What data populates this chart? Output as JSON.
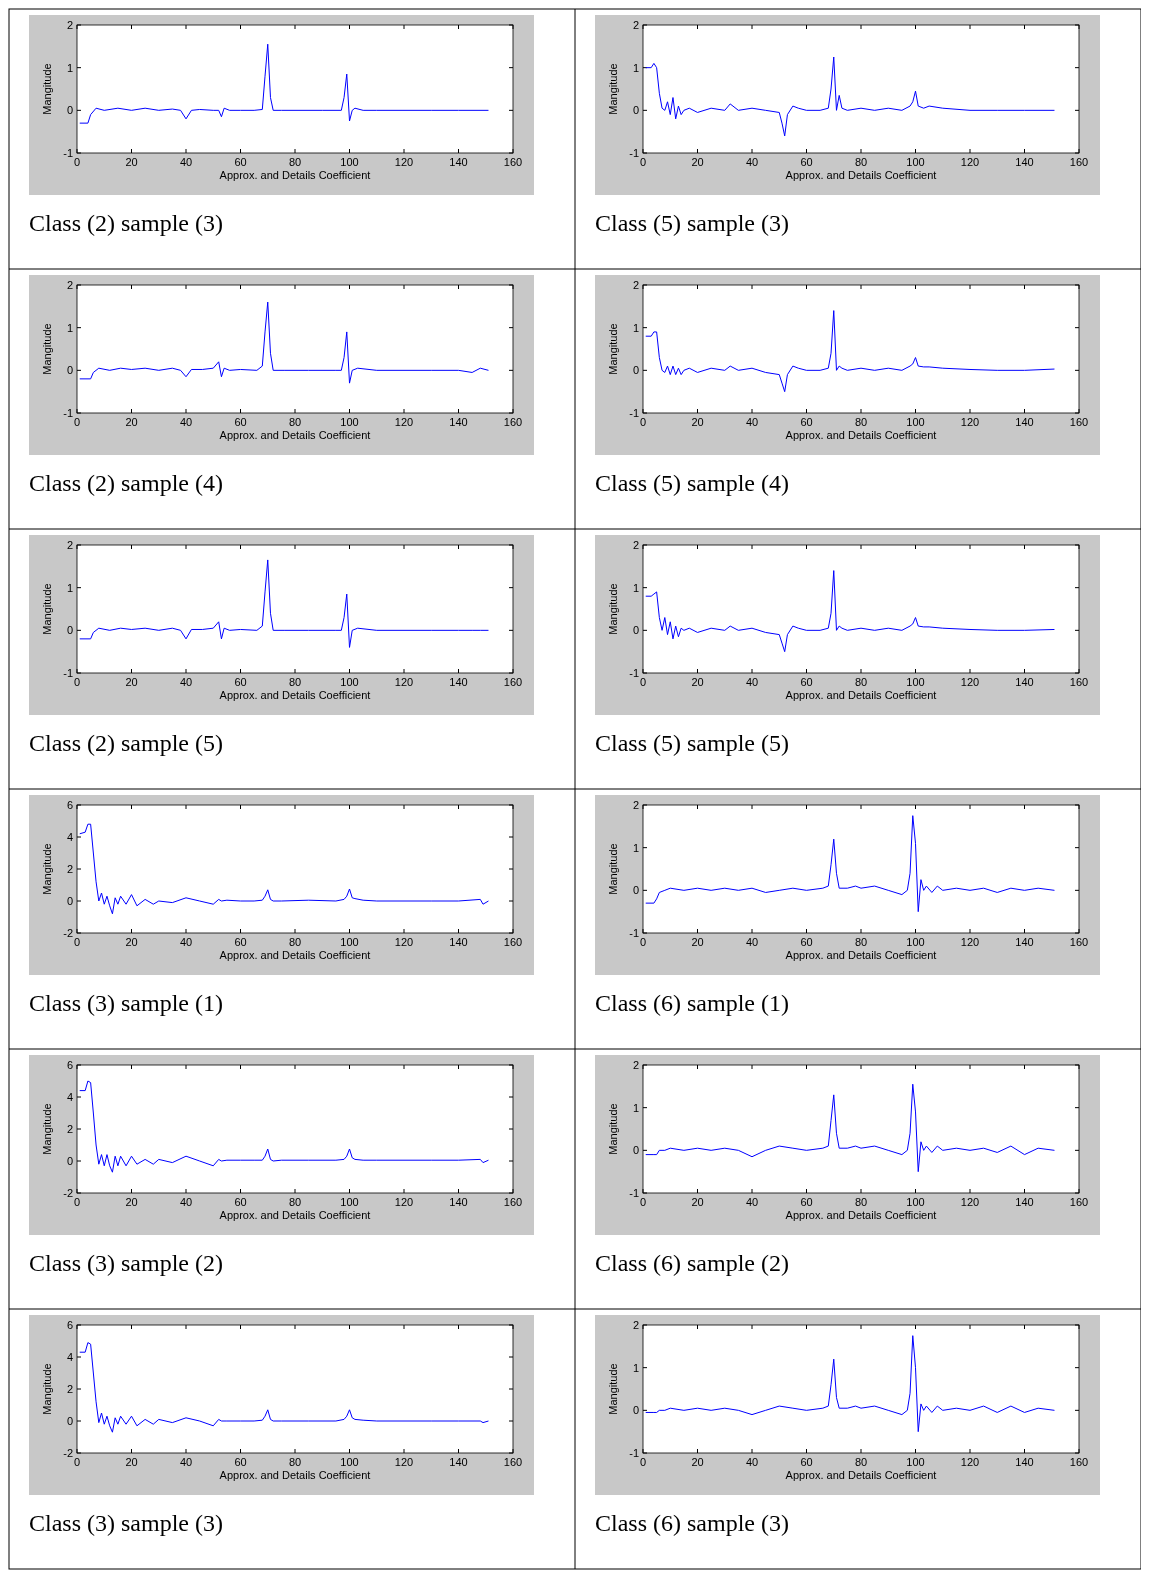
{
  "chart_data": [
    {
      "type": "line",
      "xlabel": "Approx. and Details Coefficient",
      "ylabel": "Mangitude",
      "annotations": [
        "Class (2) sample (3)"
      ],
      "xlim": [
        0,
        160
      ],
      "xticks": [
        0,
        20,
        40,
        60,
        80,
        100,
        120,
        140,
        160
      ],
      "ylim": [
        -1,
        2
      ],
      "yticks": [
        -1,
        0,
        1,
        2
      ],
      "x": [
        1,
        4,
        5,
        7,
        10,
        15,
        20,
        25,
        30,
        35,
        38,
        40,
        42,
        45,
        50,
        52,
        53,
        54,
        56,
        60,
        65,
        68,
        69,
        70,
        71,
        72,
        75,
        80,
        90,
        97,
        98,
        99,
        100,
        101,
        102,
        105,
        110,
        120,
        130,
        140,
        151
      ],
      "series": [
        {
          "color": "#0000ff",
          "values": [
            -0.3,
            -0.3,
            -0.1,
            0.05,
            0,
            0.05,
            0,
            0.05,
            0,
            0.03,
            0,
            -0.2,
            0,
            0.02,
            0,
            0,
            -0.15,
            0.05,
            0,
            0,
            0,
            0.02,
            0.8,
            1.55,
            0.3,
            0,
            0,
            0,
            0,
            0,
            0.3,
            0.85,
            -0.25,
            0,
            0.05,
            0,
            0,
            0,
            0,
            0,
            0
          ]
        }
      ]
    },
    {
      "type": "line",
      "xlabel": "Approx. and Details Coefficient",
      "ylabel": "Mangitude",
      "annotations": [
        "Class (5) sample (3)"
      ],
      "xlim": [
        0,
        160
      ],
      "xticks": [
        0,
        20,
        40,
        60,
        80,
        100,
        120,
        140,
        160
      ],
      "ylim": [
        -1,
        2
      ],
      "yticks": [
        -1,
        0,
        1,
        2
      ],
      "x": [
        1,
        3,
        4,
        5,
        6,
        7,
        8,
        9,
        10,
        11,
        12,
        13,
        14,
        15,
        17,
        20,
        25,
        30,
        32,
        35,
        40,
        45,
        50,
        51,
        52,
        53,
        55,
        57,
        60,
        65,
        68,
        69,
        70,
        71,
        72,
        73,
        75,
        80,
        85,
        90,
        95,
        98,
        99,
        100,
        101,
        103,
        105,
        110,
        120,
        130,
        140,
        151
      ],
      "series": [
        {
          "color": "#0000ff",
          "values": [
            1,
            1,
            1.1,
            1,
            0.4,
            0.05,
            0,
            0.2,
            -0.1,
            0.3,
            -0.2,
            0.1,
            -0.1,
            0,
            0.05,
            -0.05,
            0.05,
            0,
            0.15,
            0,
            0.05,
            0,
            -0.05,
            -0.3,
            -0.6,
            -0.1,
            0.1,
            0.05,
            0,
            0,
            0.05,
            0.5,
            1.25,
            0,
            0.35,
            0.05,
            0,
            0.05,
            0,
            0.05,
            0,
            0.1,
            0.2,
            0.45,
            0.1,
            0.05,
            0.1,
            0.05,
            0,
            0,
            0,
            0
          ]
        }
      ]
    },
    {
      "type": "line",
      "xlabel": "Approx. and Details Coefficient",
      "ylabel": "Mangitude",
      "annotations": [
        "Class (2) sample (4)"
      ],
      "xlim": [
        0,
        160
      ],
      "xticks": [
        0,
        20,
        40,
        60,
        80,
        100,
        120,
        140,
        160
      ],
      "ylim": [
        -1,
        2
      ],
      "yticks": [
        -1,
        0,
        1,
        2
      ],
      "x": [
        1,
        5,
        6,
        8,
        12,
        16,
        20,
        25,
        30,
        35,
        38,
        40,
        42,
        46,
        50,
        52,
        53,
        54,
        56,
        60,
        66,
        68,
        69,
        70,
        71,
        72,
        76,
        85,
        95,
        97,
        98,
        99,
        100,
        101,
        103,
        110,
        120,
        130,
        140,
        145,
        148,
        151
      ],
      "series": [
        {
          "color": "#0000ff",
          "values": [
            -0.2,
            -0.2,
            -0.05,
            0.05,
            0,
            0.05,
            0.02,
            0.05,
            0,
            0.05,
            0,
            -0.15,
            0.02,
            0.02,
            0.05,
            0.2,
            -0.15,
            0.05,
            0,
            0.02,
            0,
            0.1,
            0.9,
            1.6,
            0.4,
            0,
            0,
            0,
            0,
            0,
            0.3,
            0.9,
            -0.3,
            0,
            0.05,
            0,
            0,
            0,
            0,
            -0.05,
            0.05,
            0
          ]
        }
      ]
    },
    {
      "type": "line",
      "xlabel": "Approx. and Details Coefficient",
      "ylabel": "Mangitude",
      "annotations": [
        "Class (5) sample (4)"
      ],
      "xlim": [
        0,
        160
      ],
      "xticks": [
        0,
        20,
        40,
        60,
        80,
        100,
        120,
        140,
        160
      ],
      "ylim": [
        -1,
        2
      ],
      "yticks": [
        -1,
        0,
        1,
        2
      ],
      "x": [
        1,
        3,
        4,
        5,
        6,
        7,
        8,
        9,
        10,
        11,
        12,
        13,
        14,
        15,
        17,
        20,
        25,
        30,
        32,
        35,
        40,
        45,
        50,
        51,
        52,
        53,
        55,
        57,
        60,
        65,
        68,
        69,
        70,
        71,
        72,
        73,
        75,
        80,
        85,
        90,
        95,
        98,
        99,
        100,
        101,
        103,
        105,
        110,
        120,
        130,
        140,
        151
      ],
      "series": [
        {
          "color": "#0000ff",
          "values": [
            0.8,
            0.8,
            0.9,
            0.9,
            0.3,
            0,
            -0.05,
            0.1,
            -0.1,
            0.1,
            -0.1,
            0.05,
            -0.1,
            0,
            0.05,
            -0.05,
            0.05,
            0,
            0.1,
            0,
            0.05,
            -0.05,
            -0.1,
            -0.3,
            -0.5,
            -0.1,
            0.1,
            0.05,
            0,
            0,
            0.05,
            0.4,
            1.4,
            0,
            0.1,
            0.05,
            0,
            0.05,
            0,
            0.05,
            0,
            0.1,
            0.15,
            0.3,
            0.1,
            0.08,
            0.08,
            0.05,
            0.02,
            0,
            0,
            0.03
          ]
        }
      ]
    },
    {
      "type": "line",
      "xlabel": "Approx. and Details Coefficient",
      "ylabel": "Mangitude",
      "annotations": [
        "Class (2) sample (5)"
      ],
      "xlim": [
        0,
        160
      ],
      "xticks": [
        0,
        20,
        40,
        60,
        80,
        100,
        120,
        140,
        160
      ],
      "ylim": [
        -1,
        2
      ],
      "yticks": [
        -1,
        0,
        1,
        2
      ],
      "x": [
        1,
        5,
        6,
        8,
        12,
        16,
        20,
        25,
        30,
        35,
        38,
        40,
        42,
        46,
        50,
        52,
        53,
        54,
        56,
        60,
        66,
        68,
        69,
        70,
        71,
        72,
        76,
        85,
        95,
        97,
        98,
        99,
        100,
        101,
        103,
        110,
        120,
        130,
        140,
        145,
        148,
        151
      ],
      "series": [
        {
          "color": "#0000ff",
          "values": [
            -0.2,
            -0.2,
            -0.05,
            0.05,
            0,
            0.05,
            0.02,
            0.05,
            0,
            0.05,
            0,
            -0.2,
            0.02,
            0.02,
            0.05,
            0.2,
            -0.2,
            0.05,
            0,
            0.02,
            0,
            0.1,
            0.9,
            1.65,
            0.4,
            0,
            0,
            0,
            0,
            0,
            0.3,
            0.85,
            -0.4,
            0,
            0.05,
            0,
            0,
            0,
            0,
            0,
            0,
            0
          ]
        }
      ]
    },
    {
      "type": "line",
      "xlabel": "Approx. and Details Coefficient",
      "ylabel": "Mangitude",
      "annotations": [
        "Class (5) sample (5)"
      ],
      "xlim": [
        0,
        160
      ],
      "xticks": [
        0,
        20,
        40,
        60,
        80,
        100,
        120,
        140,
        160
      ],
      "ylim": [
        -1,
        2
      ],
      "yticks": [
        -1,
        0,
        1,
        2
      ],
      "x": [
        1,
        3,
        4,
        5,
        6,
        7,
        8,
        9,
        10,
        11,
        12,
        13,
        14,
        15,
        17,
        20,
        25,
        30,
        32,
        35,
        40,
        45,
        50,
        51,
        52,
        53,
        55,
        57,
        60,
        65,
        68,
        69,
        70,
        71,
        72,
        73,
        75,
        80,
        85,
        90,
        95,
        98,
        99,
        100,
        101,
        103,
        105,
        110,
        120,
        130,
        140,
        151
      ],
      "series": [
        {
          "color": "#0000ff",
          "values": [
            0.8,
            0.8,
            0.85,
            0.9,
            0.3,
            0,
            0.3,
            -0.1,
            0.2,
            -0.2,
            0.1,
            -0.15,
            0.05,
            0,
            0.05,
            -0.05,
            0.05,
            0,
            0.1,
            0,
            0.05,
            -0.05,
            -0.1,
            -0.3,
            -0.5,
            -0.1,
            0.1,
            0.05,
            0,
            0,
            0.05,
            0.4,
            1.4,
            0,
            0.1,
            0.05,
            0,
            0.05,
            0,
            0.05,
            0,
            0.1,
            0.15,
            0.3,
            0.1,
            0.08,
            0.08,
            0.05,
            0.02,
            0,
            0,
            0.02
          ]
        }
      ]
    },
    {
      "type": "line",
      "xlabel": "Approx. and Details Coefficient",
      "ylabel": "Mangitude",
      "annotations": [
        "Class (3) sample (1)"
      ],
      "xlim": [
        0,
        160
      ],
      "xticks": [
        0,
        20,
        40,
        60,
        80,
        100,
        120,
        140,
        160
      ],
      "ylim": [
        -2,
        6
      ],
      "yticks": [
        -2,
        0,
        2,
        4,
        6
      ],
      "x": [
        1,
        3,
        4,
        5,
        6,
        7,
        8,
        9,
        10,
        11,
        12,
        13,
        14,
        15,
        16,
        18,
        20,
        22,
        25,
        28,
        30,
        35,
        40,
        45,
        50,
        52,
        53,
        55,
        60,
        65,
        68,
        69,
        70,
        71,
        72,
        75,
        85,
        95,
        98,
        99,
        100,
        101,
        102,
        105,
        110,
        120,
        130,
        140,
        148,
        149,
        151
      ],
      "series": [
        {
          "color": "#0000ff",
          "values": [
            4.2,
            4.3,
            4.8,
            4.8,
            3,
            1.2,
            0,
            0.5,
            -0.2,
            0.3,
            -0.3,
            -0.8,
            0.2,
            -0.2,
            0.3,
            -0.2,
            0.4,
            -0.3,
            0.1,
            -0.2,
            0,
            -0.1,
            0.2,
            0,
            -0.2,
            0.1,
            0,
            0.05,
            0,
            0,
            0.05,
            0.3,
            0.7,
            0.1,
            0,
            0,
            0.05,
            0,
            0.1,
            0.3,
            0.75,
            0.2,
            0.15,
            0.05,
            0,
            0,
            0,
            0,
            0.1,
            -0.2,
            0
          ]
        }
      ]
    },
    {
      "type": "line",
      "xlabel": "Approx. and Details Coefficient",
      "ylabel": "Mangitude",
      "annotations": [
        "Class (6) sample (1)"
      ],
      "xlim": [
        0,
        160
      ],
      "xticks": [
        0,
        20,
        40,
        60,
        80,
        100,
        120,
        140,
        160
      ],
      "ylim": [
        -1,
        2
      ],
      "yticks": [
        -1,
        0,
        1,
        2
      ],
      "x": [
        1,
        4,
        5,
        6,
        8,
        10,
        15,
        20,
        25,
        30,
        35,
        40,
        45,
        50,
        55,
        60,
        66,
        68,
        69,
        70,
        71,
        72,
        75,
        78,
        80,
        85,
        90,
        95,
        97,
        98,
        99,
        100,
        101,
        102,
        103,
        104,
        106,
        108,
        110,
        115,
        120,
        125,
        130,
        135,
        140,
        145,
        151
      ],
      "series": [
        {
          "color": "#0000ff",
          "values": [
            -0.3,
            -0.3,
            -0.2,
            -0.05,
            0,
            0.05,
            0,
            0.05,
            0,
            0.05,
            0,
            0.05,
            -0.05,
            0,
            0.05,
            0,
            0.05,
            0.1,
            0.6,
            1.2,
            0.4,
            0.05,
            0.05,
            0.1,
            0.05,
            0.1,
            0,
            -0.1,
            0,
            0.4,
            1.75,
            1.1,
            -0.5,
            0.25,
            0,
            0.1,
            -0.05,
            0.1,
            0,
            0.05,
            0,
            0.05,
            -0.05,
            0.05,
            0,
            0.05,
            0
          ]
        }
      ]
    },
    {
      "type": "line",
      "xlabel": "Approx. and Details Coefficient",
      "ylabel": "Mangitude",
      "annotations": [
        "Class (3) sample (2)"
      ],
      "xlim": [
        0,
        160
      ],
      "xticks": [
        0,
        20,
        40,
        60,
        80,
        100,
        120,
        140,
        160
      ],
      "ylim": [
        -2,
        6
      ],
      "yticks": [
        -2,
        0,
        2,
        4,
        6
      ],
      "x": [
        1,
        3,
        4,
        5,
        6,
        7,
        8,
        9,
        10,
        11,
        12,
        13,
        14,
        15,
        16,
        18,
        20,
        22,
        25,
        28,
        30,
        35,
        40,
        45,
        50,
        52,
        53,
        55,
        60,
        65,
        68,
        69,
        70,
        71,
        72,
        75,
        85,
        95,
        98,
        99,
        100,
        101,
        102,
        105,
        110,
        120,
        130,
        140,
        148,
        149,
        151
      ],
      "series": [
        {
          "color": "#0000ff",
          "values": [
            4.4,
            4.4,
            5,
            4.9,
            3,
            1,
            -0.2,
            0.4,
            -0.3,
            0.4,
            -0.3,
            -0.7,
            0.3,
            -0.3,
            0.3,
            -0.3,
            0.3,
            -0.2,
            0.1,
            -0.2,
            0.1,
            -0.1,
            0.3,
            0,
            -0.3,
            0.1,
            0,
            0.05,
            0.05,
            0.05,
            0.05,
            0.3,
            0.75,
            0.1,
            0,
            0.05,
            0.05,
            0.05,
            0.1,
            0.3,
            0.75,
            0.2,
            0.1,
            0.05,
            0.05,
            0.05,
            0.05,
            0.05,
            0.1,
            -0.1,
            0.05
          ]
        }
      ]
    },
    {
      "type": "line",
      "xlabel": "Approx. and Details Coefficient",
      "ylabel": "Mangitude",
      "annotations": [
        "Class (6) sample (2)"
      ],
      "xlim": [
        0,
        160
      ],
      "xticks": [
        0,
        20,
        40,
        60,
        80,
        100,
        120,
        140,
        160
      ],
      "ylim": [
        -1,
        2
      ],
      "yticks": [
        -1,
        0,
        1,
        2
      ],
      "x": [
        1,
        4,
        5,
        6,
        8,
        10,
        15,
        20,
        25,
        30,
        35,
        40,
        45,
        50,
        55,
        60,
        66,
        68,
        69,
        70,
        71,
        72,
        75,
        78,
        80,
        85,
        90,
        95,
        97,
        98,
        99,
        100,
        101,
        102,
        103,
        104,
        106,
        108,
        110,
        115,
        120,
        125,
        130,
        135,
        140,
        145,
        151
      ],
      "series": [
        {
          "color": "#0000ff",
          "values": [
            -0.1,
            -0.1,
            -0.1,
            0,
            0,
            0.05,
            0,
            0.05,
            0,
            0.05,
            0,
            -0.15,
            0,
            0.1,
            0.05,
            0,
            0.05,
            0.1,
            0.7,
            1.3,
            0.4,
            0.05,
            0.05,
            0.1,
            0.05,
            0.1,
            0,
            -0.1,
            0,
            0.4,
            1.55,
            0.9,
            -0.5,
            0.2,
            0,
            0.1,
            -0.05,
            0.1,
            0,
            0.05,
            0,
            0.05,
            -0.05,
            0.1,
            -0.1,
            0.05,
            0
          ]
        }
      ]
    },
    {
      "type": "line",
      "xlabel": "Approx. and Details Coefficient",
      "ylabel": "Mangitude",
      "annotations": [
        "Class (3) sample (3)"
      ],
      "xlim": [
        0,
        160
      ],
      "xticks": [
        0,
        20,
        40,
        60,
        80,
        100,
        120,
        140,
        160
      ],
      "ylim": [
        -2,
        6
      ],
      "yticks": [
        -2,
        0,
        2,
        4,
        6
      ],
      "x": [
        1,
        3,
        4,
        5,
        6,
        7,
        8,
        9,
        10,
        11,
        12,
        13,
        14,
        15,
        16,
        18,
        20,
        22,
        25,
        28,
        30,
        35,
        40,
        45,
        50,
        52,
        53,
        55,
        60,
        65,
        68,
        69,
        70,
        71,
        72,
        75,
        85,
        95,
        98,
        99,
        100,
        101,
        102,
        105,
        110,
        120,
        130,
        140,
        148,
        149,
        151
      ],
      "series": [
        {
          "color": "#0000ff",
          "values": [
            4.3,
            4.3,
            4.9,
            4.8,
            3,
            1.2,
            -0.1,
            0.5,
            -0.2,
            0.3,
            -0.3,
            -0.7,
            0.2,
            -0.2,
            0.3,
            -0.2,
            0.3,
            -0.3,
            0.1,
            -0.2,
            0.1,
            -0.1,
            0.2,
            0,
            -0.3,
            0.1,
            0,
            0,
            0,
            0,
            0.05,
            0.3,
            0.7,
            0.1,
            0,
            0,
            0,
            0,
            0.1,
            0.3,
            0.7,
            0.2,
            0.1,
            0.05,
            0,
            0,
            0,
            0,
            0,
            -0.1,
            0
          ]
        }
      ]
    },
    {
      "type": "line",
      "xlabel": "Approx. and Details Coefficient",
      "ylabel": "Mangitude",
      "annotations": [
        "Class (6) sample (3)"
      ],
      "xlim": [
        0,
        160
      ],
      "xticks": [
        0,
        20,
        40,
        60,
        80,
        100,
        120,
        140,
        160
      ],
      "ylim": [
        -1,
        2
      ],
      "yticks": [
        -1,
        0,
        1,
        2
      ],
      "x": [
        1,
        4,
        5,
        6,
        8,
        10,
        15,
        20,
        25,
        30,
        35,
        40,
        45,
        50,
        55,
        60,
        66,
        68,
        69,
        70,
        71,
        72,
        75,
        78,
        80,
        85,
        90,
        95,
        97,
        98,
        99,
        100,
        101,
        102,
        103,
        104,
        106,
        108,
        110,
        115,
        120,
        125,
        130,
        135,
        140,
        145,
        151
      ],
      "series": [
        {
          "color": "#0000ff",
          "values": [
            -0.05,
            -0.05,
            -0.05,
            0,
            0,
            0.05,
            0,
            0.05,
            0,
            0.05,
            0,
            -0.1,
            0,
            0.1,
            0.05,
            0,
            0.05,
            0.1,
            0.6,
            1.2,
            0.3,
            0.05,
            0.05,
            0.1,
            0.05,
            0.1,
            0,
            -0.1,
            0,
            0.4,
            1.75,
            1,
            -0.5,
            0.15,
            0,
            0.1,
            -0.05,
            0.1,
            0,
            0.05,
            0,
            0.1,
            -0.05,
            0.1,
            -0.05,
            0.05,
            0
          ]
        }
      ]
    }
  ]
}
